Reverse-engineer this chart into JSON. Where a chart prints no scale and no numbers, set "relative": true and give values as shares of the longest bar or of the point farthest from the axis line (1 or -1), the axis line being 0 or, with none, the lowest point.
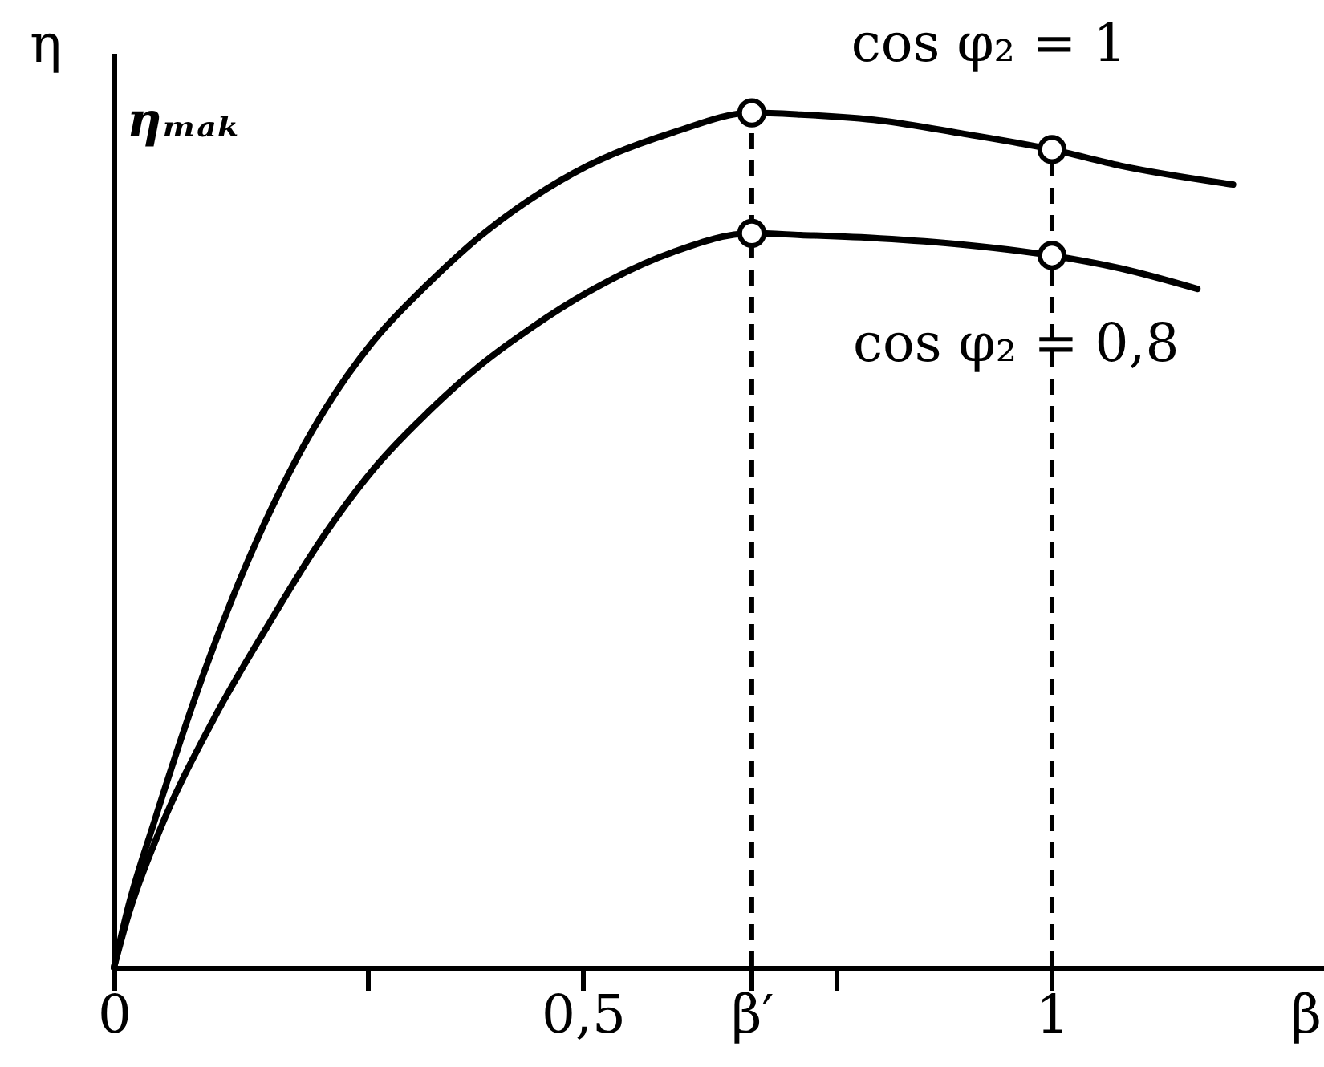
{
  "chart_data": {
    "type": "line",
    "relative": true,
    "xlabel": "β",
    "ylabel": "η",
    "xlim": [
      0,
      1.29
    ],
    "xticks": [
      0,
      {
        "value": 0.27,
        "label": null
      },
      {
        "value": 0.5,
        "label": "0,5"
      },
      {
        "value": 0.68,
        "label": "β′"
      },
      {
        "value": 0.77,
        "label": null
      },
      1
    ],
    "tick_labels": "x",
    "series": [
      {
        "name": "cos φ₂ = 1",
        "color": "#000000",
        "line_style": "solid",
        "x": [
          0,
          0.015,
          0.044,
          0.096,
          0.152,
          0.22,
          0.276,
          0.334,
          0.391,
          0.447,
          0.505,
          0.596,
          0.68,
          0.732,
          0.817,
          0.903,
          1,
          1.073,
          1.193
        ],
        "values": [
          0,
          0.07,
          0.174,
          0.345,
          0.499,
          0.644,
          0.732,
          0.799,
          0.856,
          0.901,
          0.938,
          0.977,
          1,
          0.998,
          0.991,
          0.976,
          0.957,
          0.938,
          0.916
        ]
      },
      {
        "name": "cos φ₂ = 0,8",
        "color": "#000000",
        "line_style": "solid",
        "x": [
          0,
          0.015,
          0.049,
          0.106,
          0.164,
          0.22,
          0.276,
          0.334,
          0.391,
          0.447,
          0.505,
          0.596,
          0.68,
          0.732,
          0.817,
          0.903,
          1,
          1.073,
          1.155
        ],
        "values": [
          0,
          0.06,
          0.161,
          0.29,
          0.4,
          0.499,
          0.582,
          0.649,
          0.705,
          0.75,
          0.79,
          0.837,
          0.859,
          0.857,
          0.853,
          0.846,
          0.833,
          0.818,
          0.794
        ]
      },
      {
        "type": "scatter",
        "color": "#000000",
        "marker": "circle",
        "x": [
          0.68,
          1,
          0.68,
          1
        ],
        "values": [
          1,
          0.957,
          0.859,
          0.833
        ]
      }
    ],
    "ref_lines": [
      {
        "axis": "x",
        "value": 0.68,
        "line_style": "dashed",
        "color": "#000000"
      },
      {
        "axis": "x",
        "value": 1,
        "line_style": "dashed",
        "color": "#000000"
      }
    ],
    "annotations": [
      "ηₘₐₖ"
    ]
  }
}
